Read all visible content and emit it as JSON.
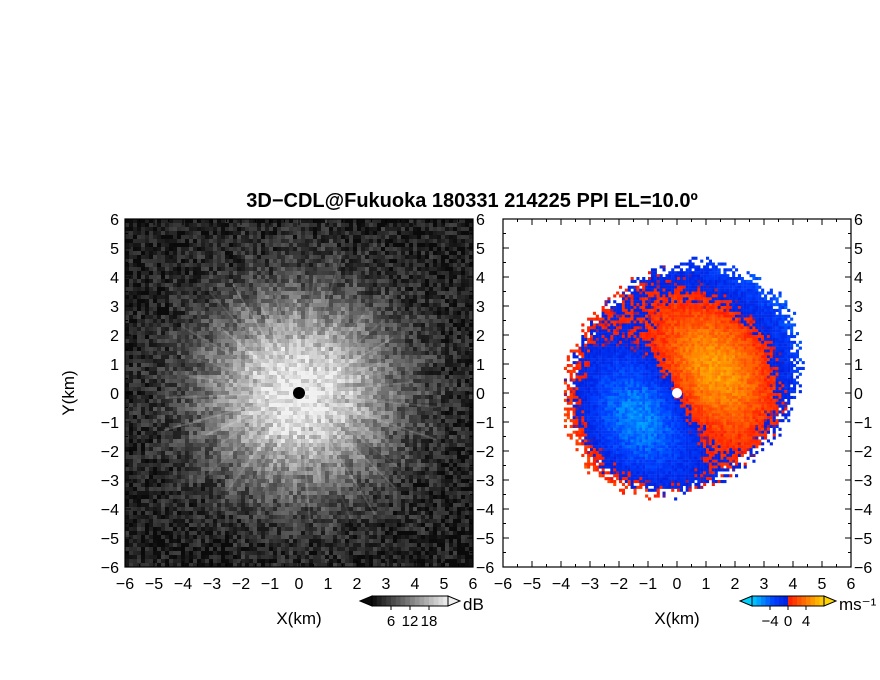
{
  "chart_data": {
    "type": "heatmap",
    "title": "3D−CDL@Fukuoka 180331 214225 PPI EL=10.0º",
    "panels": [
      {
        "name": "reflectivity",
        "xlabel": "X(km)",
        "ylabel": "Y(km)",
        "xlim": [
          -6,
          6
        ],
        "ylim": [
          -6,
          6
        ],
        "colormap": "grayscale",
        "colorbar": {
          "unit": "dB",
          "ticks": [
            "6",
            "12",
            "18"
          ],
          "range": [
            0,
            24
          ],
          "extend": "both"
        },
        "pattern": "radial bright echo centered at radar, decreasing outward; black radar marker at (0, 0)",
        "colors": {
          "low": "#0a0a0a",
          "high": "#f0f0f0",
          "marker": "#000000"
        }
      },
      {
        "name": "doppler-velocity",
        "xlabel": "X(km)",
        "ylabel": "",
        "xlim": [
          -6,
          6
        ],
        "ylim": [
          -6,
          6
        ],
        "colormap": "cyan-blue-red-orange-yellow",
        "colorbar": {
          "unit": "ms⁻¹",
          "ticks": [
            "−4",
            "0",
            "4"
          ],
          "range": [
            -6,
            6
          ],
          "extend": "both"
        },
        "pattern": "velocity dipole: negative (blue) to west and south, positive (orange/yellow) to north and east",
        "colors": {
          "neg_far": "#00d0ff",
          "neg": "#0040ff",
          "zero_neg": "#0020e0",
          "zero_pos": "#ff1a00",
          "pos": "#ff6a00",
          "pos_far": "#ffd400",
          "center": "#ffffff"
        }
      }
    ],
    "x_ticks": [
      "−6",
      "−5",
      "−4",
      "−3",
      "−2",
      "−1",
      "0",
      "1",
      "2",
      "3",
      "4",
      "5",
      "6"
    ],
    "y_ticks": [
      "6",
      "5",
      "4",
      "3",
      "2",
      "1",
      "0",
      "−1",
      "−2",
      "−3",
      "−4",
      "−5",
      "−6"
    ]
  }
}
